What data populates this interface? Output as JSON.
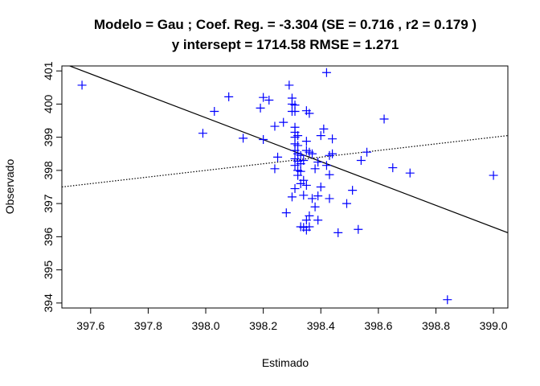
{
  "chart_data": {
    "type": "scatter",
    "title_line1": "Modelo =  Gau ; Coef. Reg. =  -3.304  (SE =  0.716 , r2 =  0.179 )",
    "title_line2": "y intersept =  1714.58 RMSE =  1.271",
    "xlabel": "Estimado",
    "ylabel": "Observado",
    "xlim": [
      397.5,
      399.05
    ],
    "ylim": [
      393.85,
      401.15
    ],
    "x_ticks": [
      "397.6",
      "397.8",
      "398.0",
      "398.2",
      "398.4",
      "398.6",
      "398.8",
      "399.0"
    ],
    "y_ticks": [
      "394",
      "395",
      "396",
      "397",
      "398",
      "399",
      "400",
      "401"
    ],
    "grid": false,
    "point_color": "#0000ff",
    "marker": "plus",
    "regression_line": {
      "intercept": 1714.58,
      "slope": -3.304,
      "style": "solid"
    },
    "identity_line": {
      "intercept": 0,
      "slope": 1,
      "style": "dotted"
    },
    "points": [
      [
        397.57,
        400.57
      ],
      [
        397.99,
        399.12
      ],
      [
        398.03,
        399.78
      ],
      [
        398.08,
        400.22
      ],
      [
        398.13,
        398.97
      ],
      [
        398.19,
        399.88
      ],
      [
        398.2,
        400.2
      ],
      [
        398.2,
        398.93
      ],
      [
        398.22,
        400.12
      ],
      [
        398.24,
        398.05
      ],
      [
        398.24,
        399.33
      ],
      [
        398.25,
        398.4
      ],
      [
        398.27,
        399.45
      ],
      [
        398.28,
        396.72
      ],
      [
        398.29,
        400.57
      ],
      [
        398.3,
        399.78
      ],
      [
        398.3,
        400.18
      ],
      [
        398.3,
        400.0
      ],
      [
        398.3,
        397.2
      ],
      [
        398.31,
        397.45
      ],
      [
        398.31,
        399.97
      ],
      [
        398.31,
        399.78
      ],
      [
        398.31,
        399.3
      ],
      [
        398.31,
        399.15
      ],
      [
        398.31,
        399.0
      ],
      [
        398.31,
        398.8
      ],
      [
        398.31,
        398.6
      ],
      [
        398.31,
        398.35
      ],
      [
        398.31,
        398.15
      ],
      [
        398.32,
        399.05
      ],
      [
        398.32,
        398.75
      ],
      [
        398.32,
        398.5
      ],
      [
        398.32,
        398.28
      ],
      [
        398.32,
        398.0
      ],
      [
        398.32,
        397.85
      ],
      [
        398.33,
        398.2
      ],
      [
        398.33,
        397.97
      ],
      [
        398.33,
        397.6
      ],
      [
        398.33,
        398.45
      ],
      [
        398.33,
        396.3
      ],
      [
        398.34,
        398.3
      ],
      [
        398.34,
        397.7
      ],
      [
        398.34,
        397.25
      ],
      [
        398.34,
        396.28
      ],
      [
        398.35,
        398.6
      ],
      [
        398.35,
        398.88
      ],
      [
        398.35,
        397.55
      ],
      [
        398.35,
        396.5
      ],
      [
        398.35,
        396.2
      ],
      [
        398.35,
        399.8
      ],
      [
        398.36,
        398.55
      ],
      [
        398.36,
        399.72
      ],
      [
        398.36,
        396.63
      ],
      [
        398.36,
        396.3
      ],
      [
        398.37,
        398.5
      ],
      [
        398.37,
        397.15
      ],
      [
        398.38,
        396.9
      ],
      [
        398.38,
        398.05
      ],
      [
        398.39,
        398.25
      ],
      [
        398.39,
        397.23
      ],
      [
        398.39,
        396.5
      ],
      [
        398.4,
        399.05
      ],
      [
        398.4,
        397.5
      ],
      [
        398.41,
        399.25
      ],
      [
        398.42,
        398.15
      ],
      [
        398.42,
        400.95
      ],
      [
        398.43,
        398.45
      ],
      [
        398.43,
        397.87
      ],
      [
        398.43,
        397.15
      ],
      [
        398.44,
        398.95
      ],
      [
        398.44,
        398.5
      ],
      [
        398.46,
        396.12
      ],
      [
        398.49,
        397.0
      ],
      [
        398.51,
        397.4
      ],
      [
        398.53,
        396.22
      ],
      [
        398.54,
        398.3
      ],
      [
        398.56,
        398.55
      ],
      [
        398.62,
        399.55
      ],
      [
        398.65,
        398.08
      ],
      [
        398.71,
        397.92
      ],
      [
        398.84,
        394.1
      ],
      [
        399.0,
        397.85
      ]
    ]
  }
}
